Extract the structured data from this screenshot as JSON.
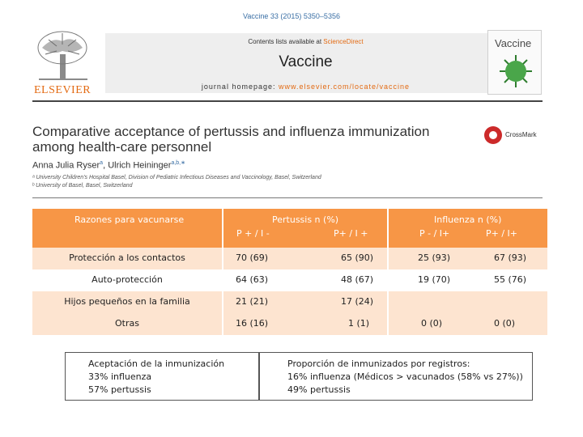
{
  "paper": {
    "journal_ref": "Vaccine 33 (2015) 5350–5356",
    "publisher": "ELSEVIER",
    "contents_prefix": "Contents lists available at",
    "contents_link": "ScienceDirect",
    "journal_name": "Vaccine",
    "homepage_prefix": "journal homepage:",
    "homepage_url": "www.elsevier.com/locate/vaccine",
    "cover_word": "Vaccine",
    "title_line1": "Comparative acceptance of pertussis and influenza immunization",
    "title_line2": "among health-care personnel",
    "crossmark_label": "CrossMark",
    "author1": "Anna Julia Ryser",
    "author1_sup": "a",
    "author_sep": ", ",
    "author2": "Ulrich Heininger",
    "author2_sup": "a,b,∗",
    "affiliation_a": "ᵃ University Children's Hospital Basel, Division of Pediatric Infectious Diseases and Vaccinology, Basel, Switzerland",
    "affiliation_b": "ᵇ University of Basel, Basel, Switzerland"
  },
  "table": {
    "header": {
      "reasons": "Razones para vacunarse",
      "pertussis_title": "Pertussis n (%)",
      "pertussis_sub1": "P + / I -",
      "pertussis_sub2": "P+ / I +",
      "influenza_title": "Influenza n (%)",
      "influenza_sub1": "P - / I+",
      "influenza_sub2": "P+ / I+"
    },
    "rows": [
      {
        "reason": "Protección a los contactos",
        "p_pos_i_neg": "70 (69)",
        "p_pos_i_pos": "65 (90)",
        "i_p_neg_i_pos": "25 (93)",
        "i_p_pos_i_pos": "67 (93)"
      },
      {
        "reason": "Auto-protección",
        "p_pos_i_neg": "64 (63)",
        "p_pos_i_pos": "48 (67)",
        "i_p_neg_i_pos": "19 (70)",
        "i_p_pos_i_pos": "55 (76)"
      },
      {
        "reason": "Hijos pequeños en la familia",
        "p_pos_i_neg": "21 (21)",
        "p_pos_i_pos": "17 (24)",
        "i_p_neg_i_pos": "",
        "i_p_pos_i_pos": ""
      },
      {
        "reason": "Otras",
        "p_pos_i_neg": "16 (16)",
        "p_pos_i_pos": "1 (1)",
        "i_p_neg_i_pos": "0 (0)",
        "i_p_pos_i_pos": "0 (0)"
      }
    ]
  },
  "summary_left": {
    "heading": "Aceptación de la inmunización",
    "line1": "33% influenza",
    "line2": "57% pertussis"
  },
  "summary_right": {
    "heading": "Proporción de inmunizados por registros:",
    "line1": "16% influenza (Médicos > vacunados (58% vs 27%))",
    "line2": "49% pertussis"
  },
  "colors": {
    "header_orange": "#f79646",
    "row_shade": "#fde4d0",
    "elsevier_orange": "#e36a12",
    "link_blue": "#3a6fa5"
  }
}
